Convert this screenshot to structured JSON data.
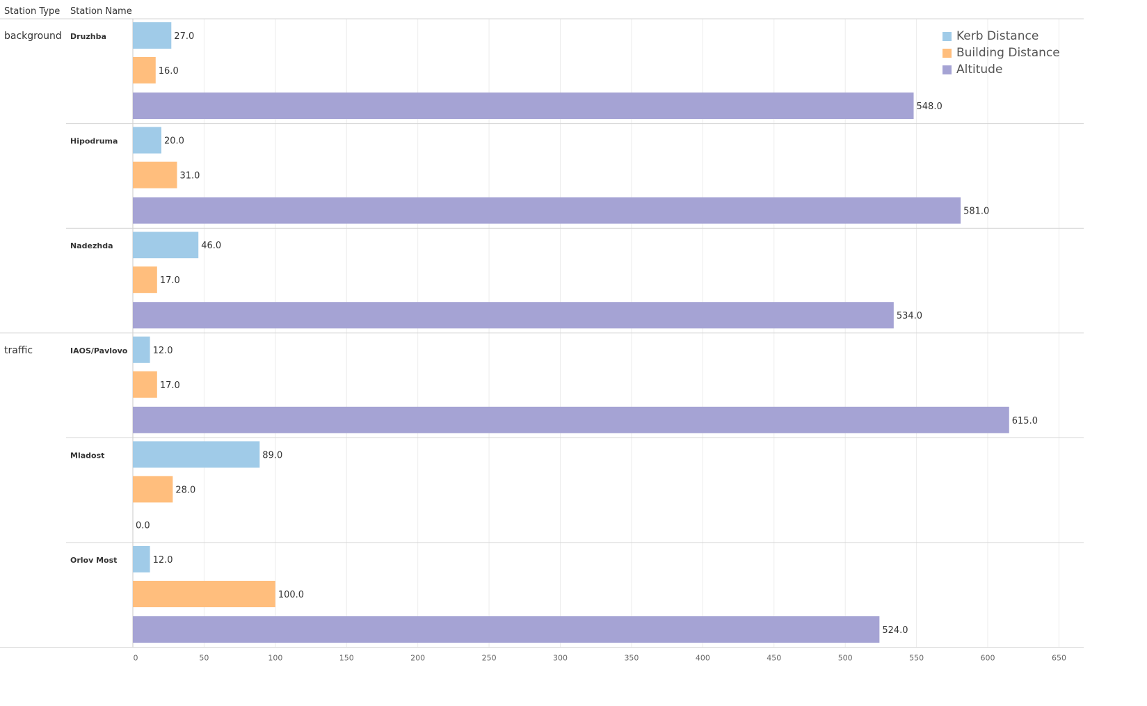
{
  "header": {
    "col1": "Station Type",
    "col2": "Station Name"
  },
  "legend": [
    {
      "name": "Kerb Distance",
      "color": "#a0cbe8"
    },
    {
      "name": "Building Distance",
      "color": "#ffbe7d"
    },
    {
      "name": "Altitude",
      "color": "#a5a3d4"
    }
  ],
  "chart_data": {
    "type": "bar",
    "orientation": "horizontal",
    "groups": [
      {
        "station_type": "background",
        "stations": [
          "Druzhba",
          "Hipodruma",
          "Nadezhda"
        ]
      },
      {
        "station_type": "traffic",
        "stations": [
          "IAOS/Pavlovo",
          "Mladost",
          "Orlov Most"
        ]
      }
    ],
    "categories": [
      "Druzhba",
      "Hipodruma",
      "Nadezhda",
      "IAOS/Pavlovo",
      "Mladost",
      "Orlov Most"
    ],
    "series": [
      {
        "name": "Kerb Distance",
        "values": [
          27.0,
          20.0,
          46.0,
          12.0,
          89.0,
          12.0
        ]
      },
      {
        "name": "Building Distance",
        "values": [
          16.0,
          31.0,
          17.0,
          17.0,
          28.0,
          100.0
        ]
      },
      {
        "name": "Altitude",
        "values": [
          548.0,
          581.0,
          534.0,
          615.0,
          0.0,
          524.0
        ]
      }
    ],
    "xticks": [
      0,
      50,
      100,
      150,
      200,
      250,
      300,
      350,
      400,
      450,
      500,
      550,
      600,
      650
    ],
    "xlim": [
      0,
      660
    ],
    "value_label_format": "one-decimal",
    "grid": true,
    "legend_position": "top-right"
  }
}
